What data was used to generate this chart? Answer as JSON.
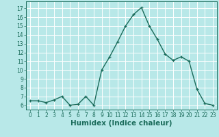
{
  "x": [
    0,
    1,
    2,
    3,
    4,
    5,
    6,
    7,
    8,
    9,
    10,
    11,
    12,
    13,
    14,
    15,
    16,
    17,
    18,
    19,
    20,
    21,
    22,
    23
  ],
  "y": [
    6.5,
    6.5,
    6.3,
    6.6,
    7.0,
    6.0,
    6.1,
    7.0,
    6.0,
    10.0,
    11.5,
    13.2,
    15.0,
    16.3,
    17.1,
    15.0,
    13.5,
    11.8,
    11.1,
    11.5,
    11.0,
    7.8,
    6.2,
    6.0
  ],
  "line_color": "#1a6b5a",
  "marker": "+",
  "marker_size": 3,
  "bg_color": "#b8e8e8",
  "grid_color": "#ffffff",
  "xlabel": "Humidex (Indice chaleur)",
  "ylim": [
    5.5,
    17.8
  ],
  "xlim": [
    -0.5,
    23.5
  ],
  "yticks": [
    6,
    7,
    8,
    9,
    10,
    11,
    12,
    13,
    14,
    15,
    16,
    17
  ],
  "xticks": [
    0,
    1,
    2,
    3,
    4,
    5,
    6,
    7,
    8,
    9,
    10,
    11,
    12,
    13,
    14,
    15,
    16,
    17,
    18,
    19,
    20,
    21,
    22,
    23
  ],
  "tick_label_fontsize": 5.5,
  "xlabel_fontsize": 7.5,
  "xlabel_fontweight": "bold"
}
